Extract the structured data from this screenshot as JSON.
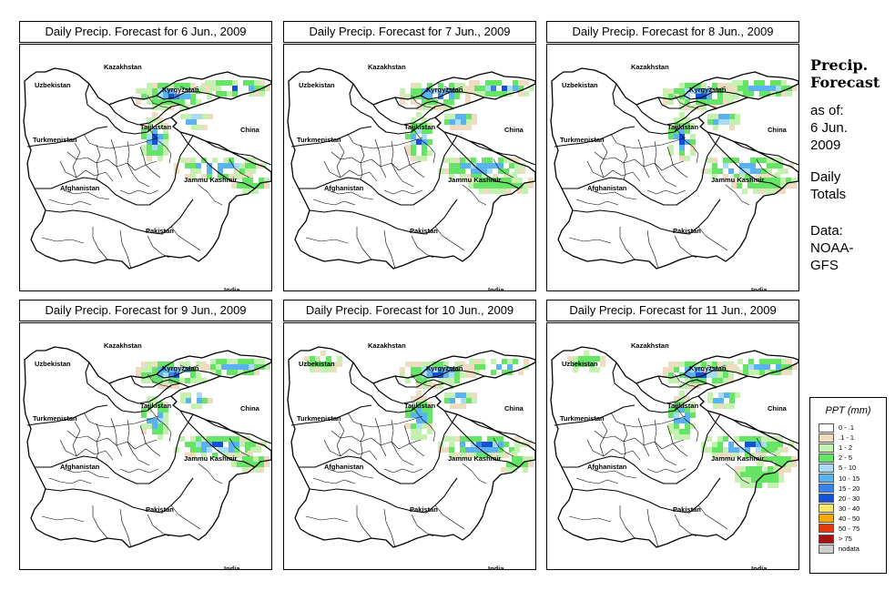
{
  "panels": [
    {
      "title": "Daily Precip. Forecast for  6 Jun., 2009",
      "wet": 1.0
    },
    {
      "title": "Daily Precip. Forecast for  7 Jun., 2009",
      "wet": 0.9
    },
    {
      "title": "Daily Precip. Forecast for  8 Jun., 2009",
      "wet": 0.8
    },
    {
      "title": "Daily Precip. Forecast for  9 Jun., 2009",
      "wet": 0.7
    },
    {
      "title": "Daily Precip. Forecast for  10 Jun., 2009",
      "wet": 0.6
    },
    {
      "title": "Daily Precip. Forecast for  11 Jun., 2009",
      "wet": 0.6
    }
  ],
  "map_labels": {
    "kazakhstan": "Kazakhstan",
    "uzbekistan": "Uzbekistan",
    "kyrgyzstan": "Kyrgyzstan",
    "tajikistan": "Tajikistan",
    "turkmenistan": "Turkmenistan",
    "china": "China",
    "afghanistan": "Afghanistan",
    "jammu_kashmir": "Jammu Kashmir",
    "pakistan": "Pakistan",
    "india": "India"
  },
  "side": {
    "title_line1": "Precip.",
    "title_line2": "Forecast",
    "asof_line1": "as of:",
    "asof_line2": "6 Jun.",
    "asof_line3": "2009",
    "totals_line1": "Daily",
    "totals_line2": "Totals",
    "data_line1": "Data:",
    "data_line2": "NOAA-",
    "data_line3": "GFS"
  },
  "legend": {
    "title": "PPT (mm)",
    "items": [
      {
        "label": "0 - .1",
        "color": "#ffffff"
      },
      {
        "label": ".1 - 1",
        "color": "#eedcc0"
      },
      {
        "label": "1 - 2",
        "color": "#c4f0b0"
      },
      {
        "label": "2 - 5",
        "color": "#66e466"
      },
      {
        "label": "5 - 10",
        "color": "#a8dcf6"
      },
      {
        "label": "10 - 15",
        "color": "#5ab2f0"
      },
      {
        "label": "15 - 20",
        "color": "#3b82e8"
      },
      {
        "label": "20 - 30",
        "color": "#1450d8"
      },
      {
        "label": "30 - 40",
        "color": "#f6e66e"
      },
      {
        "label": "40 - 50",
        "color": "#f6a800"
      },
      {
        "label": "50 - 75",
        "color": "#e03c0c"
      },
      {
        "label": "> 75",
        "color": "#a41212"
      },
      {
        "label": "nodata",
        "color": "#cfcfcf"
      }
    ]
  }
}
